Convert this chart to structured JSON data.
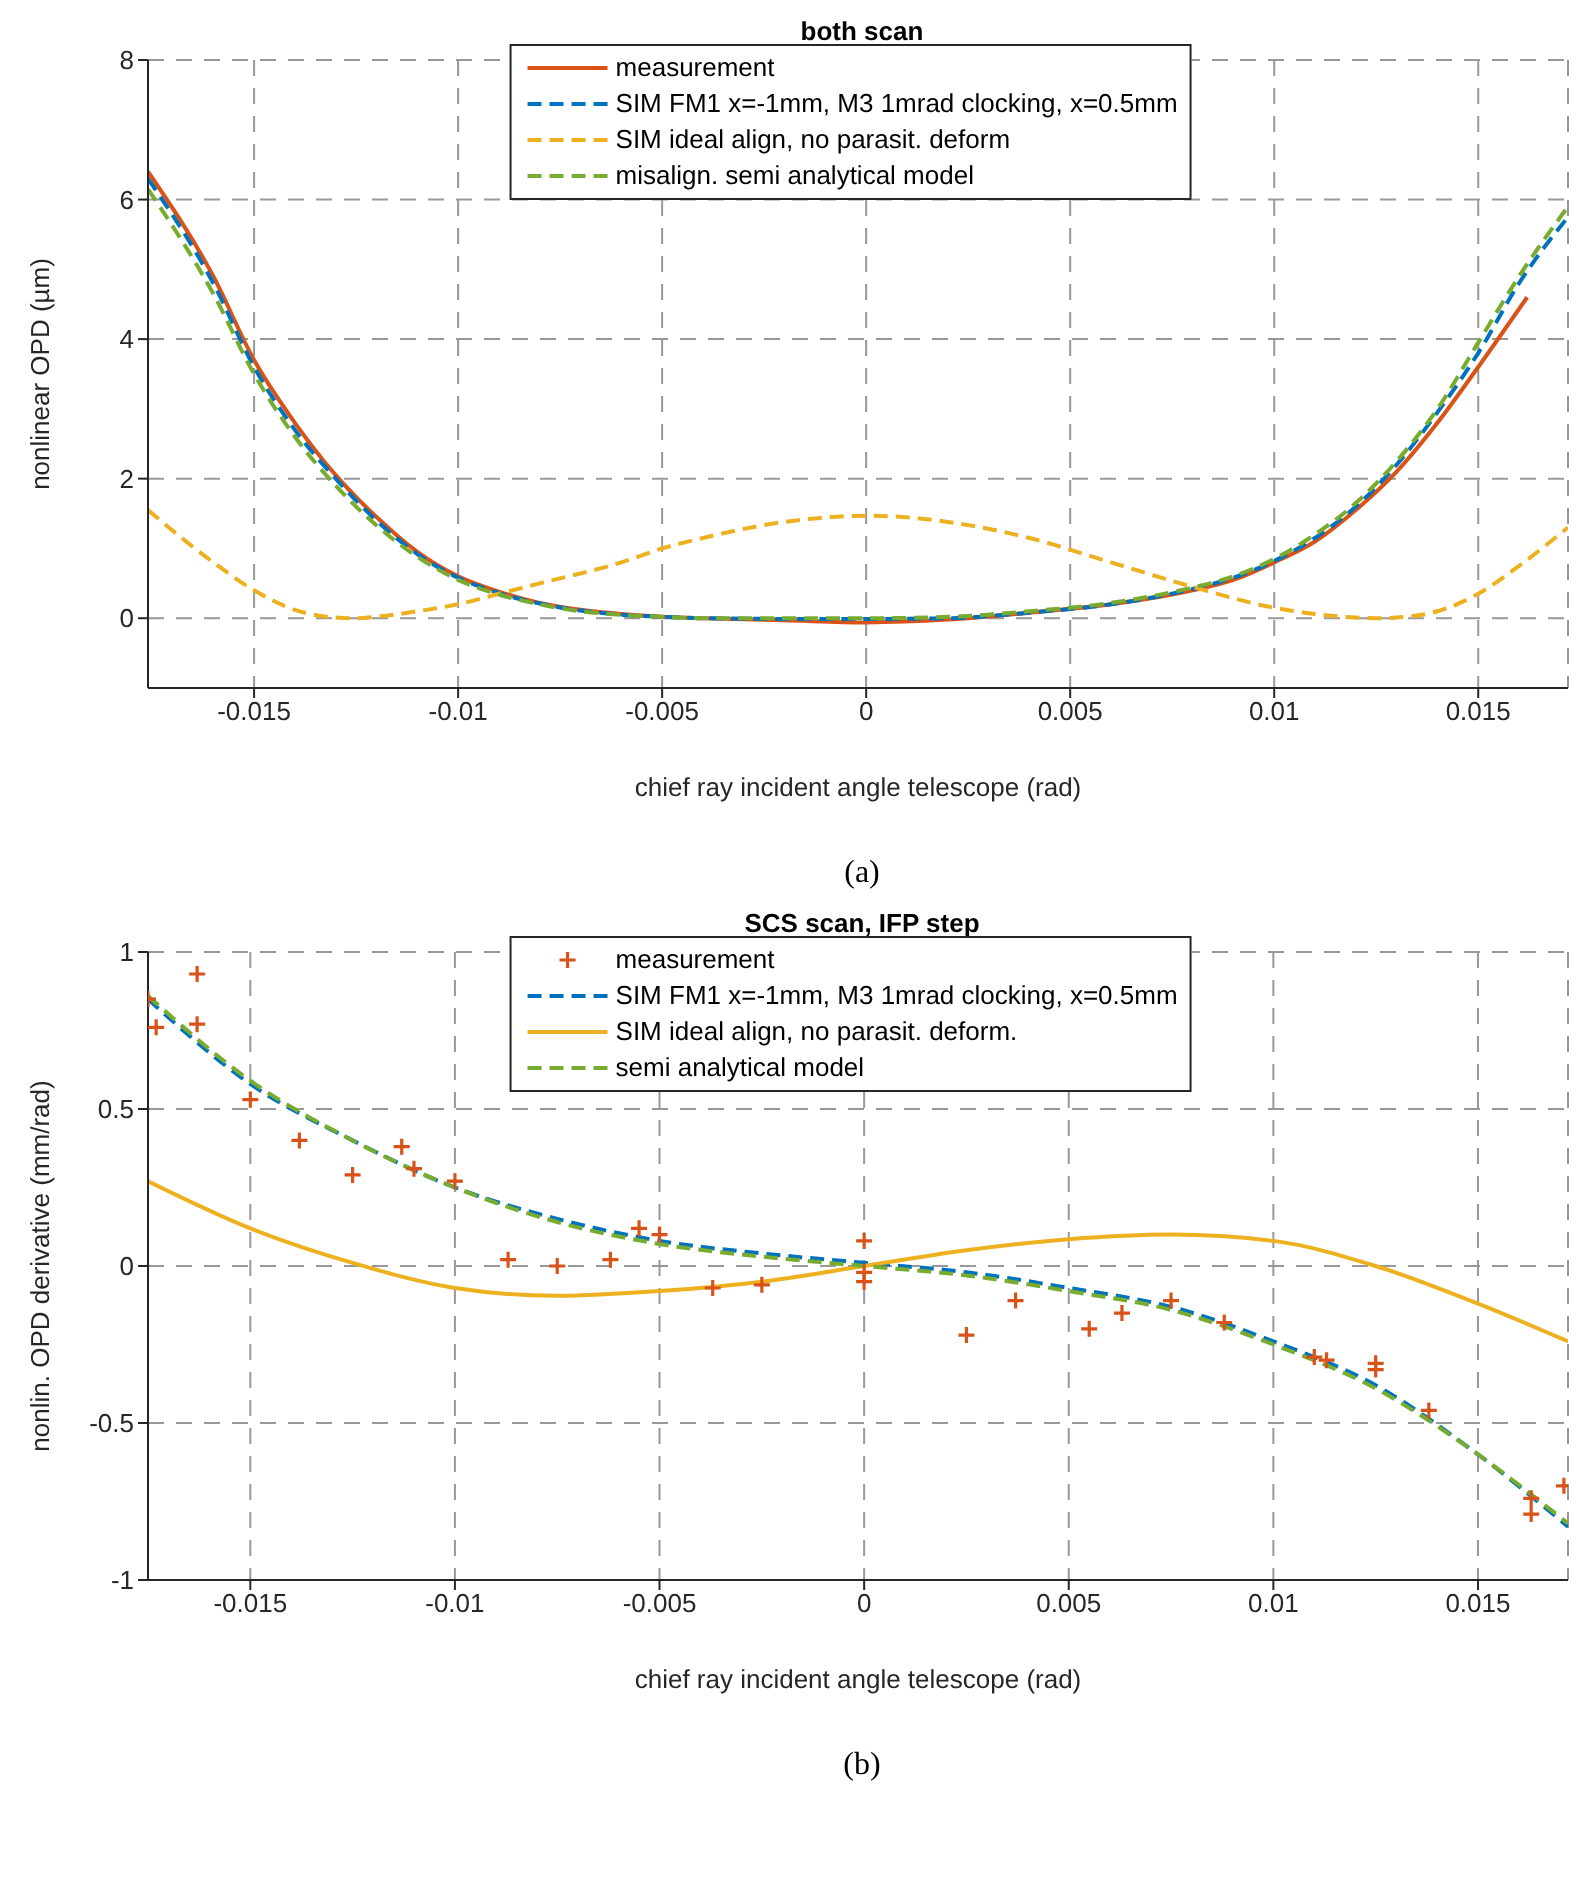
{
  "chart_data": [
    {
      "type": "line",
      "title": "both scan",
      "xlabel": "chief ray incident angle telescope (rad)",
      "ylabel": "nonlinear OPD (µm)",
      "xlim": [
        -0.0176,
        0.0172
      ],
      "xticks": [
        -0.015,
        -0.01,
        -0.005,
        0,
        0.005,
        0.01,
        0.015
      ],
      "ylim": [
        -1,
        8
      ],
      "yticks": [
        0,
        2,
        4,
        6,
        8
      ],
      "grid": true,
      "legend": "top",
      "annotations": [
        "(a)"
      ],
      "series": [
        {
          "name": "measurement",
          "color": "#d95319",
          "line_style": "solid",
          "x": [
            -0.0176,
            -0.016,
            -0.015,
            -0.014,
            -0.013,
            -0.012,
            -0.011,
            -0.01,
            -0.009,
            -0.008,
            -0.007,
            -0.006,
            -0.005,
            -0.004,
            -0.002,
            0,
            0.002,
            0.004,
            0.006,
            0.008,
            0.009,
            0.01,
            0.011,
            0.012,
            0.013,
            0.014,
            0.015,
            0.0162
          ],
          "values": [
            6.4,
            4.9,
            3.7,
            2.8,
            2.05,
            1.45,
            0.95,
            0.6,
            0.38,
            0.22,
            0.12,
            0.06,
            0.02,
            0.0,
            -0.03,
            -0.06,
            -0.02,
            0.08,
            0.2,
            0.4,
            0.55,
            0.8,
            1.1,
            1.55,
            2.1,
            2.8,
            3.6,
            4.6
          ]
        },
        {
          "name": "SIM  FM1 x=-1mm, M3 1mrad clocking, x=0.5mm",
          "color": "#0072bd",
          "line_style": "dashed",
          "x": [
            -0.0176,
            -0.016,
            -0.015,
            -0.014,
            -0.013,
            -0.012,
            -0.011,
            -0.01,
            -0.009,
            -0.008,
            -0.007,
            -0.006,
            -0.005,
            -0.004,
            -0.002,
            0,
            0.002,
            0.004,
            0.006,
            0.008,
            0.009,
            0.01,
            0.011,
            0.012,
            0.013,
            0.014,
            0.015,
            0.016,
            0.0172
          ],
          "values": [
            6.3,
            4.8,
            3.6,
            2.7,
            2.0,
            1.4,
            0.92,
            0.58,
            0.36,
            0.21,
            0.11,
            0.05,
            0.02,
            0.0,
            -0.01,
            -0.01,
            0.0,
            0.08,
            0.2,
            0.42,
            0.58,
            0.82,
            1.15,
            1.6,
            2.2,
            2.95,
            3.8,
            4.8,
            5.75
          ]
        },
        {
          "name": "SIM ideal align, no parasit. deform",
          "color": "#edb120",
          "line_style": "dashed",
          "x": [
            -0.0176,
            -0.016,
            -0.015,
            -0.014,
            -0.013,
            -0.0125,
            -0.012,
            -0.011,
            -0.01,
            -0.009,
            -0.008,
            -0.006,
            -0.005,
            -0.004,
            -0.002,
            0,
            0.002,
            0.004,
            0.006,
            0.008,
            0.01,
            0.011,
            0.012,
            0.0125,
            0.013,
            0.014,
            0.015,
            0.016,
            0.0172
          ],
          "values": [
            1.55,
            0.8,
            0.4,
            0.12,
            0.01,
            0,
            0.02,
            0.1,
            0.2,
            0.35,
            0.5,
            0.8,
            1.0,
            1.15,
            1.38,
            1.47,
            1.38,
            1.15,
            0.8,
            0.45,
            0.15,
            0.06,
            0.01,
            0,
            0.01,
            0.1,
            0.35,
            0.75,
            1.3
          ]
        },
        {
          "name": "misalign. semi analytical model",
          "color": "#77ac30",
          "line_style": "dashed",
          "x": [
            -0.0176,
            -0.016,
            -0.015,
            -0.014,
            -0.013,
            -0.012,
            -0.011,
            -0.01,
            -0.009,
            -0.008,
            -0.007,
            -0.006,
            -0.005,
            -0.004,
            -0.002,
            0,
            0.002,
            0.004,
            0.006,
            0.008,
            0.009,
            0.01,
            0.011,
            0.012,
            0.013,
            0.014,
            0.015,
            0.016,
            0.0172
          ],
          "values": [
            6.15,
            4.65,
            3.5,
            2.6,
            1.9,
            1.33,
            0.88,
            0.55,
            0.34,
            0.2,
            0.1,
            0.05,
            0.02,
            0.0,
            0.0,
            0.0,
            0.02,
            0.1,
            0.22,
            0.44,
            0.6,
            0.85,
            1.2,
            1.65,
            2.25,
            3.0,
            3.95,
            4.9,
            5.9
          ]
        }
      ]
    },
    {
      "type": "line",
      "title": "SCS scan, IFP step",
      "xlabel": "chief ray incident angle telescope (rad)",
      "ylabel": "nonlin. OPD derivative (mm/rad)",
      "xlim": [
        -0.0175,
        0.0172
      ],
      "xticks": [
        -0.015,
        -0.01,
        -0.005,
        0,
        0.005,
        0.01,
        0.015
      ],
      "ylim": [
        -1,
        1
      ],
      "yticks": [
        -1,
        -0.5,
        0,
        0.5,
        1
      ],
      "grid": true,
      "legend": "top",
      "annotations": [
        "(b)"
      ],
      "series": [
        {
          "name": "measurement",
          "color": "#d95319",
          "type": "scatter",
          "marker": "cross",
          "x": [
            -0.0175,
            -0.0173,
            -0.0163,
            -0.0163,
            -0.015,
            -0.0138,
            -0.0125,
            -0.0113,
            -0.011,
            -0.01,
            -0.0087,
            -0.0075,
            -0.0062,
            -0.0055,
            -0.005,
            -0.0037,
            -0.0025,
            0,
            0,
            0,
            0.0025,
            0.0037,
            0.0055,
            0.0063,
            0.0075,
            0.0088,
            0.011,
            0.0113,
            0.0125,
            0.0125,
            0.0138,
            0.0163,
            0.0163,
            0.0171
          ],
          "values": [
            0.85,
            0.76,
            0.93,
            0.77,
            0.53,
            0.4,
            0.29,
            0.38,
            0.31,
            0.27,
            0.02,
            0,
            0.02,
            0.12,
            0.1,
            -0.07,
            -0.06,
            0.08,
            -0.02,
            -0.05,
            -0.22,
            -0.11,
            -0.2,
            -0.15,
            -0.11,
            -0.18,
            -0.29,
            -0.3,
            -0.31,
            -0.33,
            -0.46,
            -0.74,
            -0.79,
            -0.7
          ]
        },
        {
          "name": "SIM FM1 x=-1mm, M3 1mrad clocking, x=0.5mm",
          "color": "#0072bd",
          "line_style": "dashed",
          "x": [
            -0.0175,
            -0.015,
            -0.0125,
            -0.01,
            -0.0075,
            -0.005,
            -0.0025,
            0,
            0.0025,
            0.005,
            0.0075,
            0.01,
            0.0125,
            0.015,
            0.0172
          ],
          "values": [
            0.85,
            0.58,
            0.4,
            0.25,
            0.15,
            0.08,
            0.04,
            0.01,
            -0.02,
            -0.07,
            -0.13,
            -0.24,
            -0.38,
            -0.6,
            -0.83
          ]
        },
        {
          "name": "SIM ideal align, no parasit. deform.",
          "color": "#edb120",
          "line_style": "solid",
          "x": [
            -0.0175,
            -0.015,
            -0.0125,
            -0.01,
            -0.0075,
            -0.005,
            -0.0025,
            0,
            0.0025,
            0.005,
            0.0075,
            0.01,
            0.0125,
            0.015,
            0.0172
          ],
          "values": [
            0.27,
            0.12,
            0.01,
            -0.07,
            -0.095,
            -0.08,
            -0.05,
            0,
            0.05,
            0.085,
            0.1,
            0.08,
            0,
            -0.12,
            -0.24
          ]
        },
        {
          "name": "semi analytical model",
          "color": "#77ac30",
          "line_style": "dashed",
          "x": [
            -0.0175,
            -0.015,
            -0.0125,
            -0.01,
            -0.0075,
            -0.005,
            -0.0025,
            0,
            0.0025,
            0.005,
            0.0075,
            0.01,
            0.0125,
            0.015,
            0.0172
          ],
          "values": [
            0.86,
            0.59,
            0.4,
            0.25,
            0.14,
            0.07,
            0.03,
            0.0,
            -0.03,
            -0.08,
            -0.14,
            -0.25,
            -0.39,
            -0.6,
            -0.82
          ]
        }
      ]
    }
  ]
}
